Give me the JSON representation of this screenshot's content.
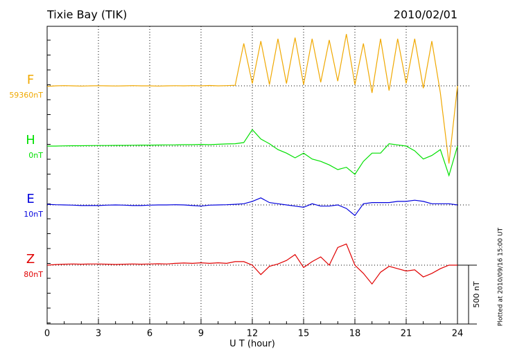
{
  "chart_data": {
    "type": "line",
    "title": "Tixie Bay (TIK)",
    "date": "2010/02/01",
    "x_label": "U T (hour)",
    "footer": "Plotted at 2010/09/16 15:00 UT",
    "scale_bar": {
      "value": 500,
      "label": "500 nT"
    },
    "xlim": [
      0,
      24
    ],
    "xticks": [
      0,
      3,
      6,
      9,
      12,
      15,
      18,
      21,
      24
    ],
    "grid": true,
    "x": [
      0,
      0.5,
      1,
      1.5,
      2,
      2.5,
      3,
      3.5,
      4,
      4.5,
      5,
      5.5,
      6,
      6.5,
      7,
      7.5,
      8,
      8.5,
      9,
      9.5,
      10,
      10.5,
      11,
      11.5,
      12,
      12.5,
      13,
      13.5,
      14,
      14.5,
      15,
      15.5,
      16,
      16.5,
      17,
      17.5,
      18,
      18.5,
      19,
      19.5,
      20,
      20.5,
      21,
      21.5,
      22,
      22.5,
      23,
      23.5,
      24
    ],
    "series": [
      {
        "name": "F",
        "color": "#f0a800",
        "offset": {
          "value": 59360,
          "label": "59360nT"
        },
        "values": [
          59355,
          59360,
          59362,
          59360,
          59358,
          59360,
          59361,
          59360,
          59359,
          59360,
          59362,
          59360,
          59360,
          59358,
          59360,
          59361,
          59360,
          59362,
          59360,
          59363,
          59360,
          59362,
          59365,
          59720,
          59380,
          59740,
          59370,
          59760,
          59380,
          59770,
          59370,
          59760,
          59390,
          59750,
          59400,
          59800,
          59370,
          59720,
          59300,
          59760,
          59320,
          59760,
          59380,
          59760,
          59340,
          59740,
          59300,
          58700,
          59360
        ]
      },
      {
        "name": "H",
        "color": "#00e000",
        "offset": {
          "value": 0,
          "label": "0nT"
        },
        "values": [
          0,
          0,
          2,
          3,
          3,
          4,
          5,
          5,
          6,
          6,
          7,
          8,
          8,
          9,
          10,
          10,
          12,
          12,
          14,
          12,
          15,
          18,
          20,
          30,
          140,
          60,
          20,
          -30,
          -60,
          -100,
          -60,
          -110,
          -130,
          -160,
          -200,
          -180,
          -240,
          -130,
          -60,
          -60,
          20,
          10,
          0,
          -40,
          -110,
          -80,
          -30,
          -250,
          0
        ]
      },
      {
        "name": "E",
        "color": "#0000dd",
        "offset": {
          "value": 10,
          "label": "10nT"
        },
        "values": [
          15,
          12,
          10,
          8,
          5,
          5,
          5,
          8,
          10,
          8,
          5,
          5,
          8,
          10,
          10,
          12,
          10,
          5,
          0,
          8,
          10,
          12,
          15,
          20,
          40,
          70,
          30,
          20,
          10,
          0,
          -10,
          20,
          0,
          0,
          10,
          -20,
          -80,
          20,
          30,
          30,
          30,
          40,
          40,
          50,
          40,
          20,
          20,
          20,
          10
        ]
      },
      {
        "name": "Z",
        "color": "#e00000",
        "offset": {
          "value": 80,
          "label": "80nT"
        },
        "values": [
          80,
          85,
          88,
          90,
          88,
          90,
          90,
          88,
          86,
          88,
          90,
          88,
          90,
          92,
          90,
          95,
          98,
          95,
          100,
          95,
          100,
          95,
          110,
          110,
          80,
          0,
          70,
          90,
          120,
          170,
          60,
          110,
          150,
          80,
          230,
          260,
          80,
          10,
          -80,
          20,
          70,
          50,
          30,
          40,
          -20,
          10,
          50,
          80,
          80
        ]
      }
    ]
  }
}
